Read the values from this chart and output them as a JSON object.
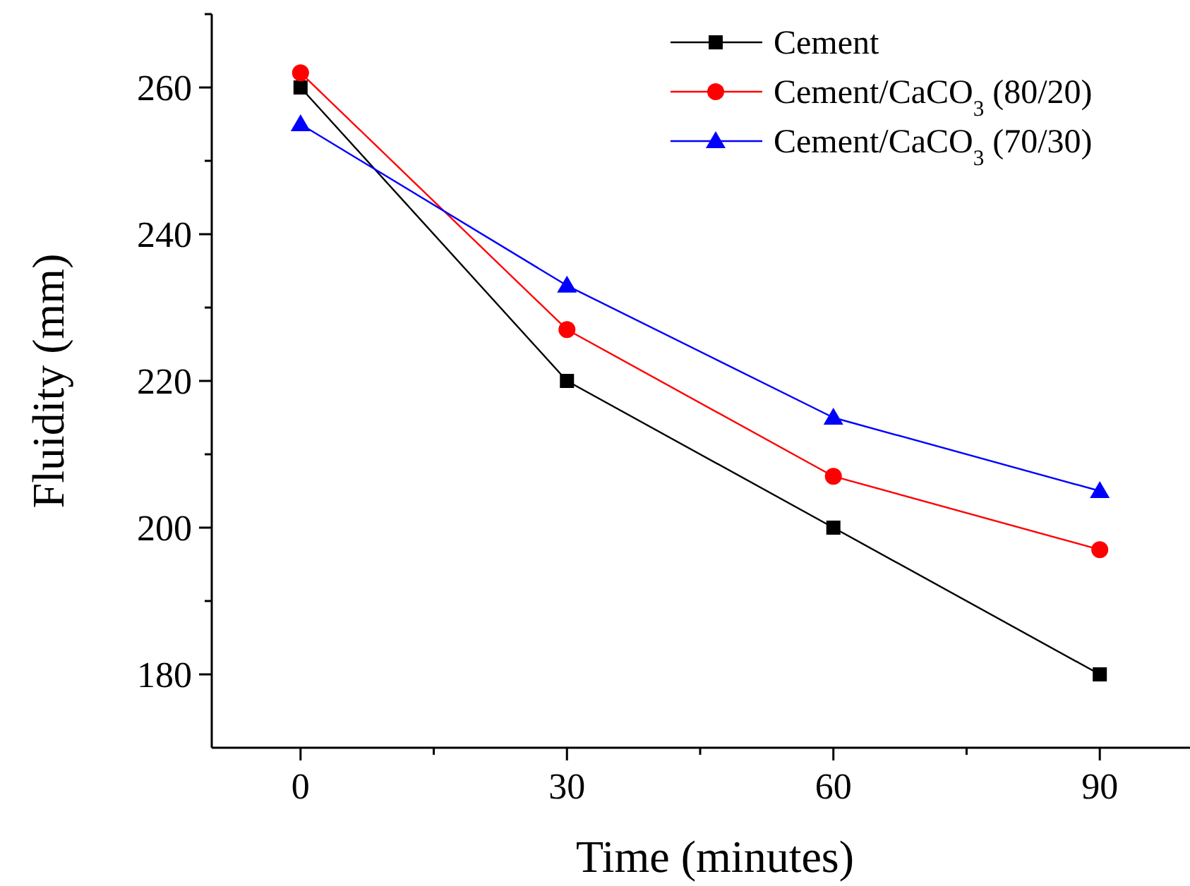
{
  "chart_data": {
    "type": "line",
    "xlabel": "Time (minutes)",
    "ylabel": "Fluidity (mm)",
    "x": [
      0,
      30,
      60,
      90
    ],
    "series": [
      {
        "name": "Cement",
        "color": "#000000",
        "marker": "square",
        "values": [
          260,
          220,
          200,
          180
        ]
      },
      {
        "name": "Cement/CaCO$_{3}$ (80/20)",
        "color": "#ff0000",
        "marker": "circle",
        "values": [
          262,
          227,
          207,
          197
        ]
      },
      {
        "name": "Cement/CaCO$_{3}$ (70/30)",
        "color": "#0000ff",
        "marker": "triangle",
        "values": [
          255,
          233,
          215,
          205
        ]
      }
    ],
    "xlim": [
      -10,
      100
    ],
    "xticks": [
      0,
      {
        "value": 15,
        "label": null
      },
      30,
      {
        "value": 45,
        "label": null
      },
      60,
      {
        "value": 75,
        "label": null
      },
      90
    ],
    "ylim": [
      170,
      270
    ],
    "yticks": [
      180,
      {
        "value": 190,
        "label": null
      },
      200,
      {
        "value": 210,
        "label": null
      },
      220,
      {
        "value": 230,
        "label": null
      },
      240,
      {
        "value": 250,
        "label": null
      },
      260,
      {
        "value": 270,
        "label": null
      }
    ],
    "grid": false,
    "legend": "top right",
    "line_style": "solid"
  }
}
